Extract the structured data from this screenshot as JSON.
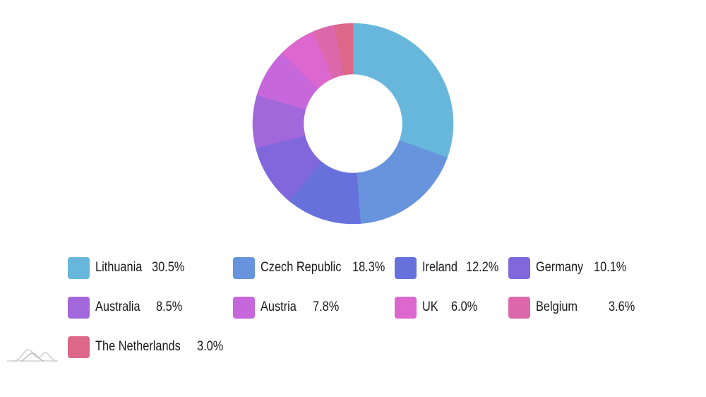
{
  "chart_data": {
    "type": "pie",
    "variant": "donut",
    "title": "",
    "categories": [
      "Lithuania",
      "Czech Republic",
      "Ireland",
      "Germany",
      "Australia",
      "Austria",
      "UK",
      "Belgium",
      "The Netherlands"
    ],
    "values": [
      30.5,
      18.3,
      12.2,
      10.1,
      8.5,
      7.8,
      6.0,
      3.6,
      3.0
    ],
    "colors": [
      "#67b7dc",
      "#6794dc",
      "#6771dc",
      "#8067dc",
      "#a367dc",
      "#c767dc",
      "#dc67ce",
      "#dc67ab",
      "#dc6788"
    ],
    "legend_position": "bottom"
  },
  "legend": [
    {
      "label": "Lithuania",
      "value": "30.5%",
      "color": "#67b7dc"
    },
    {
      "label": "Czech Republic",
      "value": "18.3%",
      "color": "#6794dc"
    },
    {
      "label": "Ireland",
      "value": "12.2%",
      "color": "#6771dc"
    },
    {
      "label": "Germany",
      "value": "10.1%",
      "color": "#8067dc"
    },
    {
      "label": "Australia",
      "value": "8.5%",
      "color": "#a367dc"
    },
    {
      "label": "Austria",
      "value": "7.8%",
      "color": "#c767dc"
    },
    {
      "label": "UK",
      "value": "6.0%",
      "color": "#dc67ce"
    },
    {
      "label": "Belgium",
      "value": "3.6%",
      "color": "#dc67ab"
    },
    {
      "label": "The Netherlands",
      "value": "3.0%",
      "color": "#dc6788"
    }
  ]
}
